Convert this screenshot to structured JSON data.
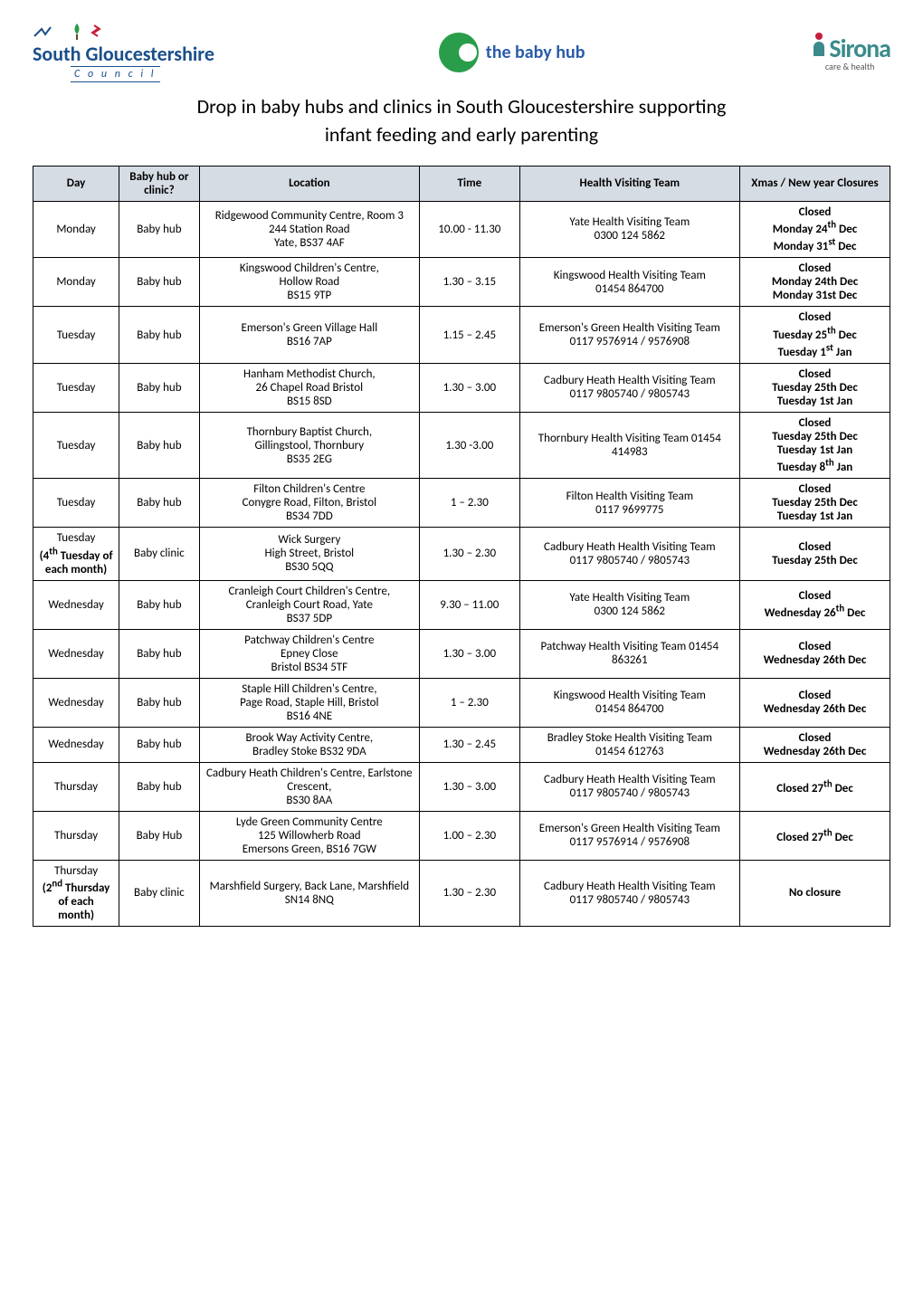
{
  "logos": {
    "sgc": {
      "name": "South Gloucestershire",
      "sub": "C o u n c i l"
    },
    "babyhub": {
      "name": "the baby hub"
    },
    "sirona": {
      "name": "Sirona",
      "sub": "care & health"
    }
  },
  "title_line1": "Drop in baby hubs and clinics in South Gloucestershire supporting",
  "title_line2": "infant feeding and early parenting",
  "headers": {
    "day": "Day",
    "hub": "Baby hub or clinic?",
    "location": "Location",
    "time": "Time",
    "team": "Health Visiting Team",
    "xmas": "Xmas / New year Closures"
  },
  "rows": [
    {
      "day": "Monday",
      "hub": "Baby hub",
      "location": "Ridgewood Community Centre, Room 3\n244 Station Road\nYate, BS37 4AF",
      "time": "10.00 - 11.30",
      "team": "Yate Health Visiting Team\n0300 124 5862",
      "xmas": "Closed\nMonday 24<sup>th</sup> Dec\nMonday 31<sup>st</sup> Dec",
      "xmas_bold": true
    },
    {
      "day": "Monday",
      "hub": "Baby hub",
      "location": "Kingswood Children's Centre,\nHollow Road\nBS15 9TP",
      "time": "1.30 – 3.15",
      "team": "Kingswood Health Visiting Team\n01454 864700",
      "xmas": "Closed\nMonday 24th Dec\nMonday 31st Dec",
      "xmas_bold": true
    },
    {
      "day": "Tuesday",
      "hub": "Baby hub",
      "location": "Emerson's Green Village Hall\nBS16 7AP",
      "time": "1.15 – 2.45",
      "team": "Emerson's Green Health Visiting Team\n0117 9576914 / 9576908",
      "xmas": "Closed\nTuesday 25<sup>th</sup> Dec\nTuesday 1<sup>st</sup> Jan",
      "xmas_bold": true
    },
    {
      "day": "Tuesday",
      "hub": "Baby hub",
      "location": "Hanham Methodist Church,\n26 Chapel Road Bristol\nBS15 8SD",
      "time": "1.30 – 3.00",
      "team": "Cadbury Heath Health Visiting Team\n0117 9805740 / 9805743",
      "xmas": "Closed\nTuesday 25th Dec\nTuesday 1st Jan",
      "xmas_bold": true
    },
    {
      "day": "Tuesday",
      "hub": "Baby hub",
      "location": "Thornbury Baptist Church,\nGillingstool, Thornbury\nBS35 2EG",
      "time": "1.30 -3.00",
      "team": "Thornbury Health Visiting Team   01454 414983",
      "xmas": "Closed\nTuesday 25th Dec\nTuesday 1st Jan\nTuesday 8<sup>th</sup> Jan",
      "xmas_bold": true
    },
    {
      "day": "Tuesday",
      "hub": "Baby hub",
      "location": "Filton Children's Centre\nConygre Road, Filton, Bristol\nBS34 7DD",
      "time": "1 – 2.30",
      "team": "Filton Health Visiting Team\n0117 9699775",
      "xmas": "Closed\nTuesday 25th Dec\nTuesday 1st Jan",
      "xmas_bold": true
    },
    {
      "day": "Tuesday\n(4<sup>th</sup> Tuesday of each month)",
      "day_bold_after_first": true,
      "hub": "Baby clinic",
      "location": "Wick Surgery\nHigh Street, Bristol\nBS30 5QQ",
      "time": "1.30 – 2.30",
      "team": "Cadbury Heath Health Visiting Team\n0117 9805740 / 9805743",
      "xmas": "Closed\nTuesday 25th Dec",
      "xmas_bold": true
    },
    {
      "day": "Wednesday",
      "hub": "Baby hub",
      "location": "Cranleigh Court Children's Centre, Cranleigh Court Road, Yate\nBS37 5DP",
      "time": "9.30 – 11.00",
      "team": "Yate Health Visiting Team\n0300 124 5862",
      "xmas": "Closed\nWednesday 26<sup>th</sup> Dec",
      "xmas_bold": true
    },
    {
      "day": "Wednesday",
      "hub": "Baby hub",
      "location": "Patchway Children's Centre\nEpney Close\nBristol BS34 5TF",
      "time": "1.30 – 3.00",
      "team": "Patchway Health Visiting Team  01454 863261",
      "xmas": "Closed\nWednesday 26th Dec",
      "xmas_bold": true
    },
    {
      "day": "Wednesday",
      "hub": "Baby hub",
      "location": "Staple Hill Children's Centre,\nPage Road, Staple Hill, Bristol\nBS16 4NE",
      "time": "1 – 2.30",
      "team": "Kingswood Health Visiting Team\n01454 864700",
      "xmas": "Closed\nWednesday 26th Dec",
      "xmas_bold": true
    },
    {
      "day": "Wednesday",
      "hub": "Baby hub",
      "location": "Brook Way Activity Centre,\nBradley Stoke BS32 9DA",
      "time": "1.30 – 2.45",
      "team": "Bradley Stoke Health Visiting Team\n01454 612763",
      "xmas": "Closed\nWednesday 26th Dec",
      "xmas_bold": true
    },
    {
      "day": "Thursday",
      "hub": "Baby hub",
      "location": "Cadbury Heath Children's Centre, Earlstone Crescent,\nBS30 8AA",
      "time": "1.30 – 3.00",
      "team": "Cadbury Heath Health Visiting Team\n0117 9805740 / 9805743",
      "xmas": "Closed 27<sup>th</sup> Dec",
      "xmas_bold": true
    },
    {
      "day": "Thursday",
      "hub": "Baby Hub",
      "location": "Lyde Green Community Centre\n125 Willowherb Road\nEmersons Green, BS16 7GW",
      "time": "1.00 – 2.30",
      "team": "Emerson's Green Health Visiting Team\n0117 9576914 / 9576908",
      "xmas": "Closed 27<sup>th</sup> Dec",
      "xmas_bold": true
    },
    {
      "day": "Thursday\n(2<sup>nd</sup> Thursday of each month)",
      "day_bold_after_first": true,
      "hub": "Baby clinic",
      "location": "Marshfield Surgery, Back Lane, Marshfield\nSN14 8NQ",
      "time": "1.30 – 2.30",
      "team": "Cadbury Heath Health Visiting Team\n0117 9805740 / 9805743",
      "xmas": "No closure",
      "xmas_bold": true
    }
  ],
  "colors": {
    "header_bg": "#d6dce4",
    "border": "#000000",
    "sgc_blue": "#1a4f8a",
    "babyhub_green": "#2a9d4a",
    "babyhub_text": "#2a5caa",
    "sirona_teal": "#3b8b8b",
    "sirona_red": "#c41e3a"
  }
}
